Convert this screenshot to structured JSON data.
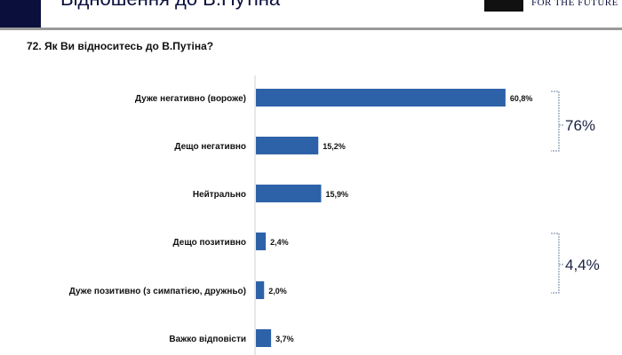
{
  "header": {
    "title": "Відношення до В.Путіна",
    "logo_text": "FOR THE FUTURE"
  },
  "chart_data": {
    "type": "bar",
    "orientation": "horizontal",
    "title": "72. Як Ви відноситесь до В.Путіна?",
    "categories": [
      "Дуже негативно (вороже)",
      "Дещо негативно",
      "Нейтрально",
      "Дещо позитивно",
      "Дуже позитивно (з симпатією, дружньо)",
      "Важко відповісти"
    ],
    "values": [
      60.8,
      15.2,
      15.9,
      2.4,
      2.0,
      3.7
    ],
    "data_labels": [
      "60,8%",
      "15,2%",
      "15,9%",
      "2,4%",
      "2,0%",
      "3,7%"
    ],
    "bar_color": "#2e62a8",
    "xlim": [
      0,
      100
    ],
    "annotations": [
      {
        "label": "76%",
        "covers": [
          0,
          1
        ]
      },
      {
        "label": "4,4%",
        "covers": [
          3,
          4
        ]
      }
    ]
  }
}
